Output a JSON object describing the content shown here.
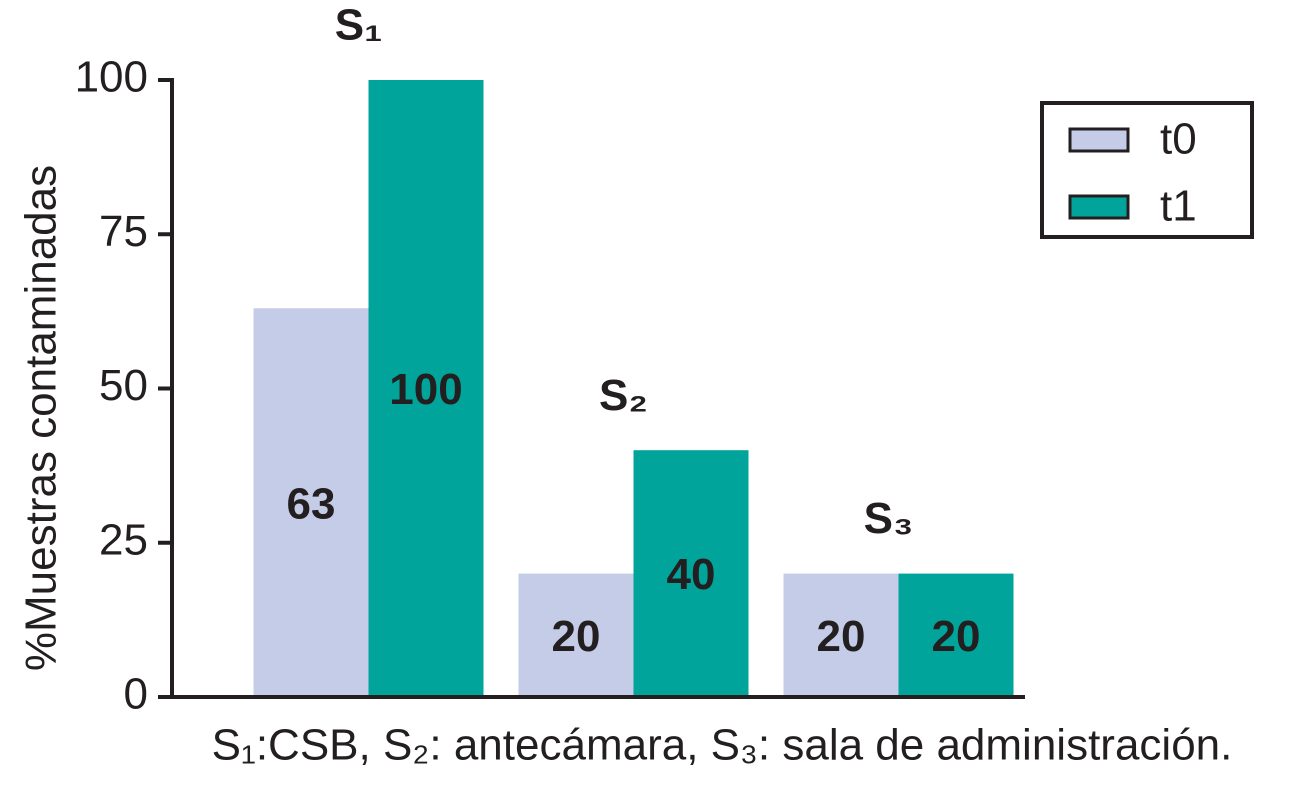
{
  "chart_data": {
    "type": "bar",
    "y_label": "%Muestras contaminadas",
    "note": "S₁:CSB, S₂: antecámara, S₃: sala de administración.",
    "categories": [
      "S₁",
      "S₂",
      "S₃"
    ],
    "series": [
      {
        "name": "t0",
        "color": "#c5cce7",
        "values": [
          63,
          20,
          20
        ]
      },
      {
        "name": "t1",
        "color": "#00a49a",
        "values": [
          100,
          40,
          20
        ]
      }
    ],
    "ylim": [
      0,
      100
    ],
    "yticks": [
      0,
      25,
      50,
      75,
      100
    ],
    "legend": "upper right"
  }
}
